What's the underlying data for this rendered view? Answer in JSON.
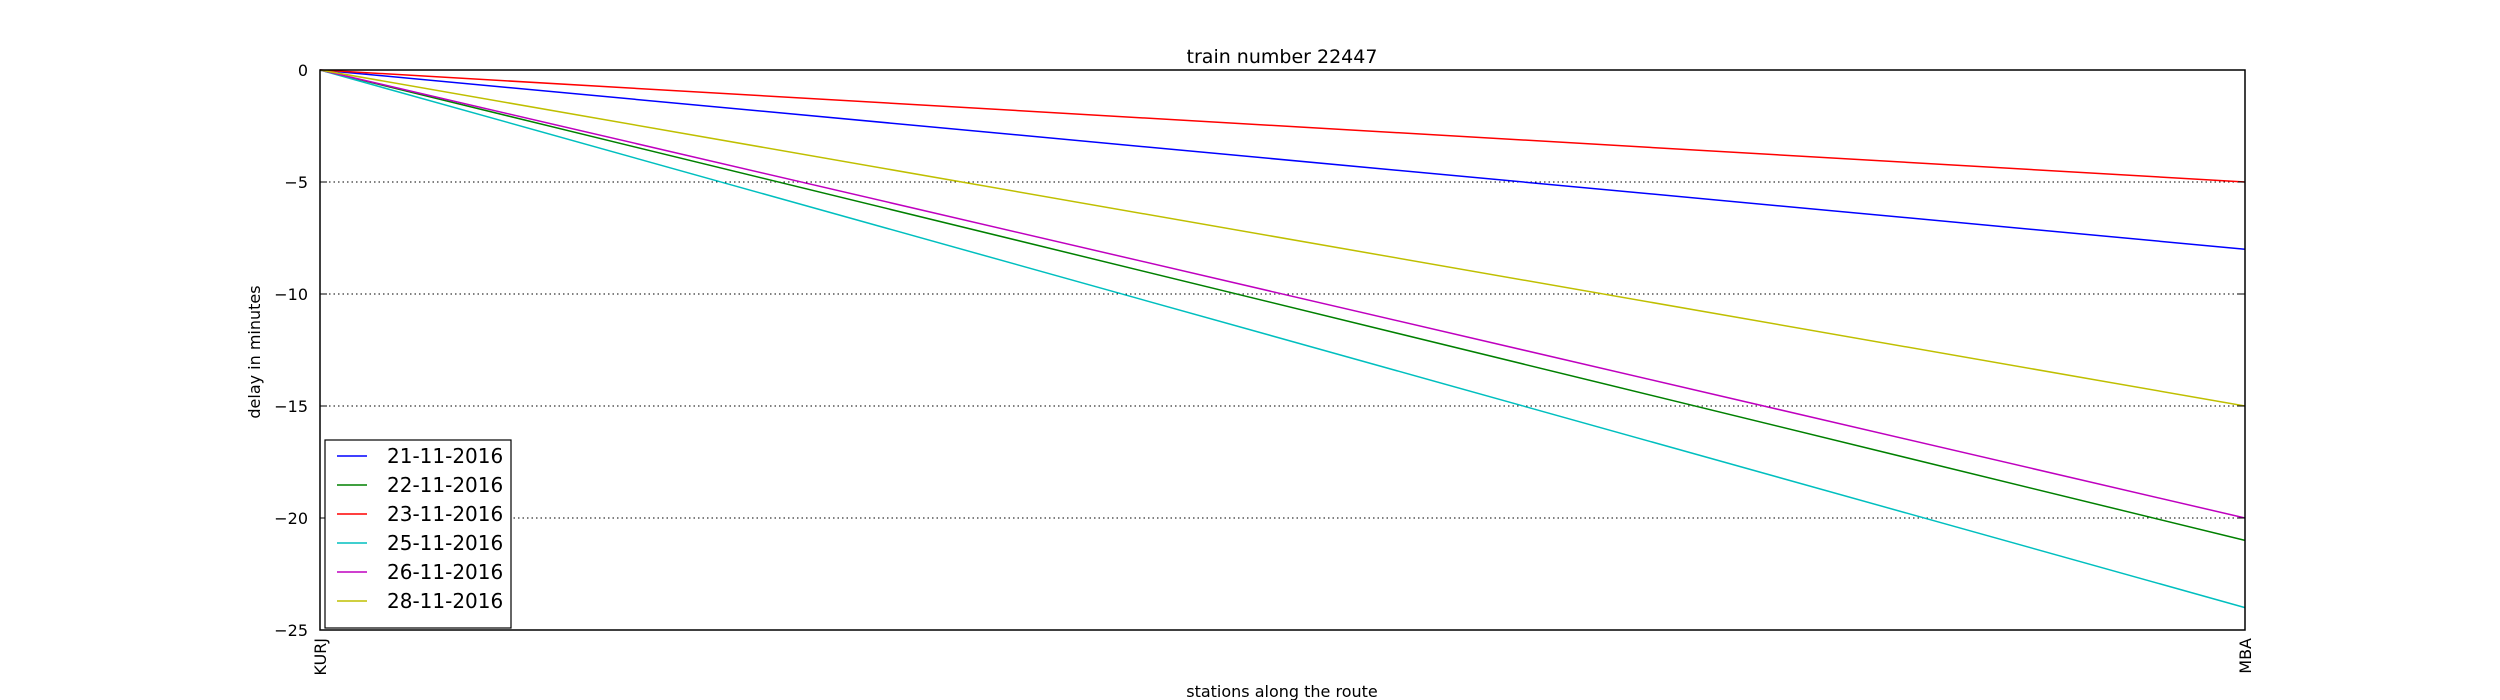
{
  "chart_data": {
    "type": "line",
    "title": "train number 22447",
    "xlabel": "stations along the route",
    "ylabel": "delay in minutes",
    "categories": [
      "KURJ",
      "MBA"
    ],
    "ylim": [
      -25,
      0
    ],
    "yticks": [
      0,
      -5,
      -10,
      -15,
      -20,
      -25
    ],
    "grid": "horizontal dotted",
    "legend_position": "lower-left",
    "series": [
      {
        "name": "21-11-2016",
        "color": "#0000ff",
        "values": [
          0,
          -8
        ]
      },
      {
        "name": "22-11-2016",
        "color": "#008000",
        "values": [
          0,
          -21
        ]
      },
      {
        "name": "23-11-2016",
        "color": "#ff0000",
        "values": [
          0,
          -5
        ]
      },
      {
        "name": "25-11-2016",
        "color": "#00bfbf",
        "values": [
          0,
          -24
        ]
      },
      {
        "name": "26-11-2016",
        "color": "#bf00bf",
        "values": [
          0,
          -20
        ]
      },
      {
        "name": "28-11-2016",
        "color": "#bfbf00",
        "values": [
          0,
          -15
        ]
      }
    ]
  }
}
